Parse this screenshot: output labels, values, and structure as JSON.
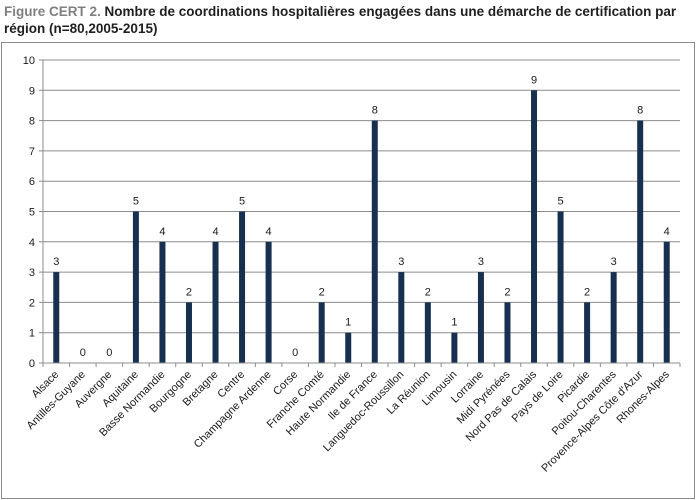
{
  "title_prefix": "Figure CERT 2.",
  "title_text": " Nombre de coordinations hospitalières engagées dans une démarche de certification par région (n=80,2005-2015)",
  "colors": {
    "bar": "#17304f",
    "grid": "#8c8c8c",
    "axis": "#8c8c8c"
  },
  "chart_data": {
    "type": "bar",
    "title": "Figure CERT 2. Nombre de coordinations hospitalières engagées dans une démarche de certification par région (n=80,2005-2015)",
    "xlabel": "",
    "ylabel": "",
    "ylim": [
      0,
      10
    ],
    "yticks": [
      0,
      1,
      2,
      3,
      4,
      5,
      6,
      7,
      8,
      9,
      10
    ],
    "grid": true,
    "legend": "none",
    "categories": [
      "Alsace",
      "Antilles-Guyane",
      "Auvergne",
      "Aquitaine",
      "Basse Normandie",
      "Bourgogne",
      "Bretagne",
      "Centre",
      "Champagne Ardenne",
      "Corse",
      "Franche Comté",
      "Haute Normandie",
      "Ile de France",
      "Languedoc-Roussillon",
      "La Réunion",
      "Limousin",
      "Lorraine",
      "Midi Pyrénées",
      "Nord Pas de Calais",
      "Pays de Loire",
      "Picardie",
      "Poitou-Charentes",
      "Provence-Alpes Côte d'Azur",
      "Rhones-Alpes"
    ],
    "values": [
      3,
      0,
      0,
      5,
      4,
      2,
      4,
      5,
      4,
      0,
      2,
      1,
      8,
      3,
      2,
      1,
      3,
      2,
      9,
      5,
      2,
      3,
      8,
      4
    ]
  }
}
